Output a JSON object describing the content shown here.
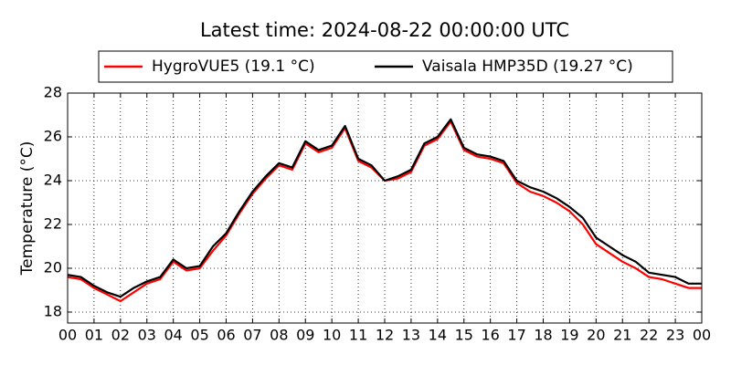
{
  "chart_data": {
    "type": "line",
    "title": "Latest time: 2024-08-22 00:00:00 UTC",
    "y_label": "Temperature (°C)",
    "x": [
      0,
      0.5,
      1,
      1.5,
      2,
      2.5,
      3,
      3.5,
      4,
      4.5,
      5,
      5.5,
      6,
      6.5,
      7,
      7.5,
      8,
      8.5,
      9,
      9.5,
      10,
      10.5,
      11,
      11.5,
      12,
      12.5,
      13,
      13.5,
      14,
      14.5,
      15,
      15.5,
      16,
      16.5,
      17,
      17.5,
      18,
      18.5,
      19,
      19.5,
      20,
      20.5,
      21,
      21.5,
      22,
      22.5,
      23,
      23.5,
      24
    ],
    "series": [
      {
        "name": "HygroVUE5 (19.1 °C)",
        "color": "#ff0000",
        "values": [
          19.6,
          19.5,
          19.1,
          18.8,
          18.5,
          18.9,
          19.3,
          19.5,
          20.3,
          19.9,
          20.0,
          20.8,
          21.5,
          22.5,
          23.4,
          24.1,
          24.7,
          24.5,
          25.7,
          25.3,
          25.5,
          26.4,
          24.9,
          24.6,
          24.0,
          24.1,
          24.4,
          25.6,
          25.9,
          26.7,
          25.4,
          25.1,
          25.0,
          24.8,
          23.9,
          23.5,
          23.3,
          23.0,
          22.6,
          22.0,
          21.1,
          20.7,
          20.3,
          20.0,
          19.6,
          19.5,
          19.3,
          19.1,
          19.1
        ]
      },
      {
        "name": "Vaisala HMP35D (19.27 °C)",
        "color": "#000000",
        "values": [
          19.7,
          19.6,
          19.2,
          18.9,
          18.7,
          19.1,
          19.4,
          19.6,
          20.4,
          20.0,
          20.1,
          21.0,
          21.6,
          22.6,
          23.5,
          24.2,
          24.8,
          24.6,
          25.8,
          25.4,
          25.6,
          26.5,
          25.0,
          24.7,
          24.0,
          24.2,
          24.5,
          25.7,
          26.0,
          26.8,
          25.5,
          25.2,
          25.1,
          24.9,
          24.0,
          23.7,
          23.5,
          23.2,
          22.8,
          22.3,
          21.4,
          21.0,
          20.6,
          20.3,
          19.8,
          19.7,
          19.6,
          19.3,
          19.3
        ]
      }
    ],
    "xlim": [
      0,
      24
    ],
    "xticks": [
      {
        "value": 0,
        "label": "00"
      },
      {
        "value": 1,
        "label": "01"
      },
      {
        "value": 2,
        "label": "02"
      },
      {
        "value": 3,
        "label": "03"
      },
      {
        "value": 4,
        "label": "04"
      },
      {
        "value": 5,
        "label": "05"
      },
      {
        "value": 6,
        "label": "06"
      },
      {
        "value": 7,
        "label": "07"
      },
      {
        "value": 8,
        "label": "08"
      },
      {
        "value": 9,
        "label": "09"
      },
      {
        "value": 10,
        "label": "10"
      },
      {
        "value": 11,
        "label": "11"
      },
      {
        "value": 12,
        "label": "12"
      },
      {
        "value": 13,
        "label": "13"
      },
      {
        "value": 14,
        "label": "14"
      },
      {
        "value": 15,
        "label": "15"
      },
      {
        "value": 16,
        "label": "16"
      },
      {
        "value": 17,
        "label": "17"
      },
      {
        "value": 18,
        "label": "18"
      },
      {
        "value": 19,
        "label": "19"
      },
      {
        "value": 20,
        "label": "20"
      },
      {
        "value": 21,
        "label": "21"
      },
      {
        "value": 22,
        "label": "22"
      },
      {
        "value": 23,
        "label": "23"
      },
      {
        "value": 24,
        "label": "00"
      }
    ],
    "ylim": [
      17.5,
      28
    ],
    "yticks": [
      18,
      20,
      22,
      24,
      26,
      28
    ],
    "grid": true,
    "legend": "top"
  }
}
